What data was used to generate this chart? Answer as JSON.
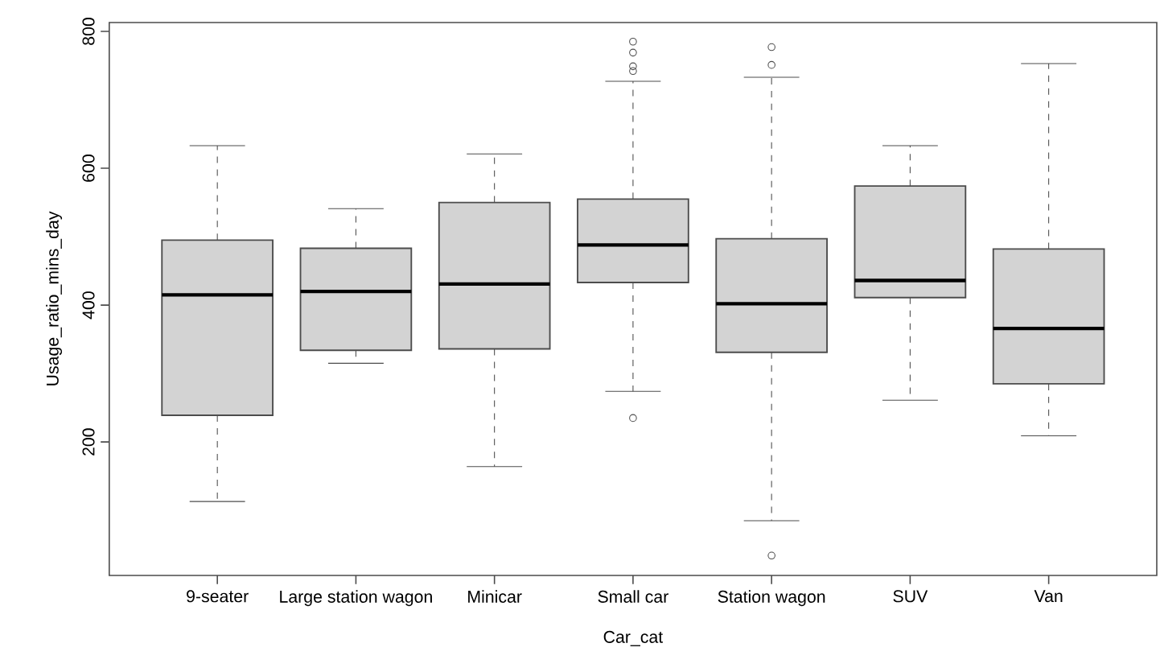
{
  "chart_data": {
    "type": "box",
    "xlabel": "Car_cat",
    "ylabel": "Usage_ratio_mins_day",
    "categories": [
      "9-seater",
      "Large station wagon",
      "Minicar",
      "Small car",
      "Station wagon",
      "SUV",
      "Van"
    ],
    "color": "#d3d3d3",
    "ylim": [
      5,
      813
    ],
    "yticks": [
      200,
      400,
      600,
      800
    ],
    "boxes": [
      {
        "low": 113,
        "q1": 239,
        "median": 415,
        "q3": 495,
        "high": 633
      },
      {
        "low": 315,
        "q1": 334,
        "median": 420,
        "q3": 483,
        "high": 541
      },
      {
        "low": 164,
        "q1": 336,
        "median": 431,
        "q3": 550,
        "high": 621
      },
      {
        "low": 274,
        "q1": 433,
        "median": 488,
        "q3": 555,
        "high": 727,
        "outliers": [
          235,
          742,
          749,
          769,
          785
        ]
      },
      {
        "low": 85,
        "q1": 331,
        "median": 402,
        "q3": 497,
        "high": 733,
        "outliers": [
          34,
          751,
          777
        ]
      },
      {
        "low": 261,
        "q1": 411,
        "median": 436,
        "q3": 574,
        "high": 633
      },
      {
        "low": 209,
        "q1": 285,
        "median": 366,
        "q3": 482,
        "high": 753
      }
    ]
  }
}
